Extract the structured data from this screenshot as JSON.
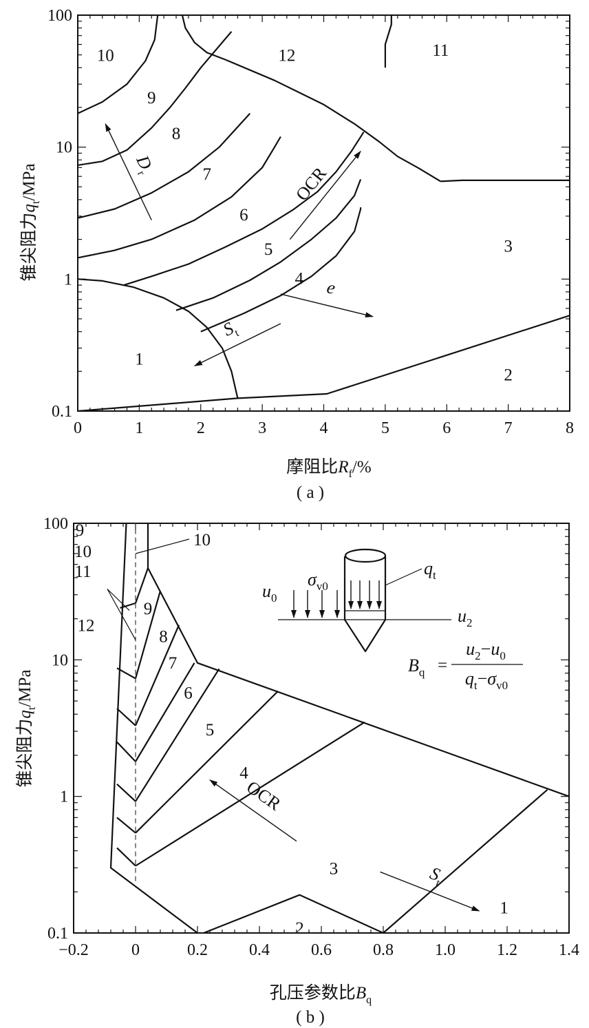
{
  "chart_data": [
    {
      "id": "a",
      "type": "line",
      "caption": "( a )",
      "xlabel": "摩阻比R_f/%",
      "xlabel_parts": {
        "text": "摩阻比",
        "var": "R",
        "sub": "f",
        "unit": "/%"
      },
      "ylabel_parts": {
        "text": "锥尖阻力",
        "var": "q",
        "sub": "t",
        "unit": "/MPa"
      },
      "xlim": [
        0,
        8
      ],
      "ylim": [
        0.1,
        100
      ],
      "y_scale": "log",
      "x_ticks": [
        "0",
        "1",
        "2",
        "3",
        "4",
        "5",
        "6",
        "7",
        "8"
      ],
      "y_ticks": [
        "0.1",
        "1",
        "10",
        "100"
      ],
      "boundaries": [
        [
          [
            0,
            1.0
          ],
          [
            0.4,
            0.97
          ],
          [
            0.9,
            0.87
          ],
          [
            1.4,
            0.72
          ],
          [
            1.8,
            0.57
          ],
          [
            2.1,
            0.43
          ],
          [
            2.35,
            0.3
          ],
          [
            2.5,
            0.2
          ],
          [
            2.6,
            0.125
          ]
        ],
        [
          [
            0,
            0.1
          ],
          [
            2.6,
            0.125
          ],
          [
            4.05,
            0.135
          ],
          [
            8,
            0.53
          ]
        ],
        [
          [
            0.75,
            0.9
          ],
          [
            1.2,
            1.05
          ],
          [
            1.8,
            1.3
          ],
          [
            2.4,
            1.75
          ],
          [
            3.0,
            2.4
          ],
          [
            3.5,
            3.35
          ],
          [
            3.9,
            4.6
          ],
          [
            4.2,
            6.5
          ],
          [
            4.45,
            9.3
          ],
          [
            4.65,
            13
          ]
        ],
        [
          [
            1.6,
            0.58
          ],
          [
            2.2,
            0.72
          ],
          [
            2.8,
            0.98
          ],
          [
            3.3,
            1.35
          ],
          [
            3.8,
            2.0
          ],
          [
            4.2,
            2.9
          ],
          [
            4.5,
            4.3
          ],
          [
            4.6,
            5.7
          ]
        ],
        [
          [
            2.0,
            0.4
          ],
          [
            2.7,
            0.55
          ],
          [
            3.3,
            0.75
          ],
          [
            3.8,
            1.05
          ],
          [
            4.2,
            1.5
          ],
          [
            4.5,
            2.3
          ],
          [
            4.6,
            3.4
          ],
          [
            4.6,
            3.5
          ]
        ],
        [
          [
            0,
            1.45
          ],
          [
            0.6,
            1.65
          ],
          [
            1.2,
            2.0
          ],
          [
            1.9,
            2.8
          ],
          [
            2.5,
            4.2
          ],
          [
            3.0,
            7.0
          ],
          [
            3.2,
            10
          ],
          [
            3.3,
            12
          ]
        ],
        [
          [
            0,
            2.9
          ],
          [
            0.6,
            3.4
          ],
          [
            1.2,
            4.5
          ],
          [
            1.8,
            6.5
          ],
          [
            2.3,
            10
          ],
          [
            2.8,
            18
          ]
        ],
        [
          [
            0,
            7.3
          ],
          [
            0.4,
            7.8
          ],
          [
            0.8,
            9.5
          ],
          [
            1.2,
            14
          ],
          [
            1.5,
            20
          ],
          [
            1.75,
            28
          ],
          [
            2.0,
            40
          ],
          [
            2.5,
            75
          ]
        ],
        [
          [
            0,
            18
          ],
          [
            0.4,
            22
          ],
          [
            0.8,
            30
          ],
          [
            1.1,
            45
          ],
          [
            1.25,
            65
          ],
          [
            1.3,
            100
          ]
        ],
        [
          [
            1.7,
            100
          ],
          [
            1.75,
            80
          ],
          [
            1.9,
            62
          ],
          [
            2.1,
            52
          ],
          [
            2.4,
            46
          ]
        ],
        [
          [
            2.4,
            46
          ],
          [
            3.2,
            32
          ],
          [
            4.0,
            21
          ],
          [
            4.5,
            15
          ],
          [
            4.9,
            11
          ],
          [
            5.2,
            8.5
          ],
          [
            5.55,
            6.9
          ],
          [
            5.9,
            5.5
          ]
        ],
        [
          [
            5.9,
            5.5
          ],
          [
            6.25,
            5.6
          ],
          [
            8,
            5.6
          ]
        ],
        [
          [
            5.1,
            100
          ],
          [
            5.1,
            85
          ],
          [
            5.0,
            60
          ],
          [
            5.0,
            45
          ],
          [
            5.0,
            40
          ]
        ]
      ],
      "zones": [
        {
          "label": "1",
          "x": 1.0,
          "y": 0.25
        },
        {
          "label": "2",
          "x": 7.0,
          "y": 0.19
        },
        {
          "label": "3",
          "x": 7.0,
          "y": 1.8
        },
        {
          "label": "4",
          "x": 3.6,
          "y": 1.02
        },
        {
          "label": "5",
          "x": 3.1,
          "y": 1.7
        },
        {
          "label": "6",
          "x": 2.7,
          "y": 3.1
        },
        {
          "label": "7",
          "x": 2.1,
          "y": 6.3
        },
        {
          "label": "8",
          "x": 1.6,
          "y": 12.8
        },
        {
          "label": "9",
          "x": 1.2,
          "y": 24
        },
        {
          "label": "10",
          "x": 0.45,
          "y": 50
        },
        {
          "label": "12",
          "x": 3.4,
          "y": 50
        },
        {
          "label": "11",
          "x": 5.9,
          "y": 55
        }
      ],
      "annotations": [
        {
          "label": "D",
          "sub": "r",
          "from": [
            1.2,
            2.8
          ],
          "to": [
            0.45,
            15
          ]
        },
        {
          "label": "OCR",
          "from": [
            3.45,
            2.0
          ],
          "to": [
            4.6,
            9.3
          ]
        },
        {
          "label": "e",
          "from": [
            3.3,
            0.77
          ],
          "to": [
            4.8,
            0.52
          ]
        },
        {
          "label": "S",
          "sub": "t",
          "from": [
            3.3,
            0.46
          ],
          "to": [
            1.9,
            0.22
          ]
        }
      ]
    },
    {
      "id": "b",
      "type": "line",
      "caption": "( b )",
      "xlabel": "孔压参数比B_q",
      "xlabel_parts": {
        "text": "孔压参数比",
        "var": "B",
        "sub": "q"
      },
      "ylabel_parts": {
        "text": "锥尖阻力",
        "var": "q",
        "sub": "t",
        "unit": "/MPa"
      },
      "xlim": [
        -0.2,
        1.4
      ],
      "ylim": [
        0.1,
        100
      ],
      "y_scale": "log",
      "x_ticks": [
        "−0.2",
        "0",
        "0.2",
        "0.4",
        "0.6",
        "0.8",
        "1.0",
        "1.2",
        "1.4"
      ],
      "y_ticks": [
        "0.1",
        "1",
        "10",
        "100"
      ],
      "boundaries": [
        [
          [
            -0.03,
            100
          ],
          [
            -0.08,
            0.3
          ],
          [
            0.2,
            0.1
          ]
        ],
        [
          [
            0.04,
            100
          ],
          [
            0.04,
            47
          ],
          [
            0.2,
            9.5
          ],
          [
            1.4,
            1.0
          ]
        ],
        [
          [
            0,
            0.31
          ],
          [
            0.74,
            3.5
          ]
        ],
        [
          [
            0,
            0.54
          ],
          [
            0.46,
            5.9
          ]
        ],
        [
          [
            0,
            0.92
          ],
          [
            0.27,
            8.6
          ]
        ],
        [
          [
            0,
            1.8
          ],
          [
            0.19,
            9.5
          ]
        ],
        [
          [
            0,
            3.3
          ],
          [
            0.14,
            18
          ]
        ],
        [
          [
            0,
            7.3
          ],
          [
            0.08,
            32
          ]
        ],
        [
          [
            0,
            26
          ],
          [
            0.04,
            47
          ]
        ],
        [
          [
            -0.06,
            0.42
          ],
          [
            0,
            0.31
          ]
        ],
        [
          [
            -0.06,
            0.7
          ],
          [
            0,
            0.54
          ]
        ],
        [
          [
            -0.06,
            1.23
          ],
          [
            0,
            0.92
          ]
        ],
        [
          [
            -0.06,
            2.5
          ],
          [
            0,
            1.8
          ]
        ],
        [
          [
            -0.06,
            4.4
          ],
          [
            0,
            3.3
          ]
        ],
        [
          [
            -0.06,
            8.7
          ],
          [
            0,
            7.3
          ]
        ],
        [
          [
            -0.05,
            24
          ],
          [
            0,
            26
          ]
        ],
        [
          [
            0.22,
            0.1
          ],
          [
            0.53,
            0.19
          ],
          [
            0.8,
            0.1
          ]
        ],
        [
          [
            0.8,
            0.1
          ],
          [
            1.33,
            1.12
          ]
        ]
      ],
      "dashed": [
        [
          0,
          0.24
        ],
        [
          0,
          100
        ]
      ],
      "zones": [
        {
          "label": "9",
          "x": 0.04,
          "y": 24
        },
        {
          "label": "8",
          "x": 0.09,
          "y": 15
        },
        {
          "label": "7",
          "x": 0.12,
          "y": 9.6
        },
        {
          "label": "6",
          "x": 0.17,
          "y": 5.8
        },
        {
          "label": "5",
          "x": 0.24,
          "y": 3.1
        },
        {
          "label": "4",
          "x": 0.35,
          "y": 1.5
        },
        {
          "label": "3",
          "x": 0.64,
          "y": 0.3
        },
        {
          "label": "2",
          "x": 0.53,
          "y": 0.11
        },
        {
          "label": "1",
          "x": 1.19,
          "y": 0.155
        },
        {
          "label": "9",
          "x": -0.18,
          "y": 90
        },
        {
          "label": "10",
          "x": -0.17,
          "y": 63
        },
        {
          "label": "11",
          "x": -0.17,
          "y": 45
        },
        {
          "label": "12",
          "x": -0.16,
          "y": 18
        }
      ],
      "callouts": [
        {
          "label": "10",
          "target": [
            0,
            60
          ]
        },
        {
          "label": "11",
          "target": [
            -0.02,
            23
          ]
        },
        {
          "label": "12",
          "target": [
            0,
            14
          ]
        }
      ],
      "annotations": [
        {
          "label": "OCR",
          "from": [
            0.52,
            0.47
          ],
          "to": [
            0.24,
            1.32
          ]
        },
        {
          "label": "S",
          "sub": "t",
          "from": [
            0.79,
            0.28
          ],
          "to": [
            1.11,
            0.145
          ]
        }
      ],
      "inset": {
        "sigma": "σ",
        "sigma_sub": "v0",
        "q": "q",
        "q_sub": "t",
        "u0": "u",
        "u0_sub": "0",
        "u2": "u",
        "u2_sub": "2",
        "B": "B",
        "B_sub": "q",
        "eq": "=",
        "num": [
          "u",
          "2",
          "−",
          "u",
          "0"
        ],
        "den": [
          "q",
          "t",
          "−",
          "σ",
          "v0"
        ]
      }
    }
  ]
}
